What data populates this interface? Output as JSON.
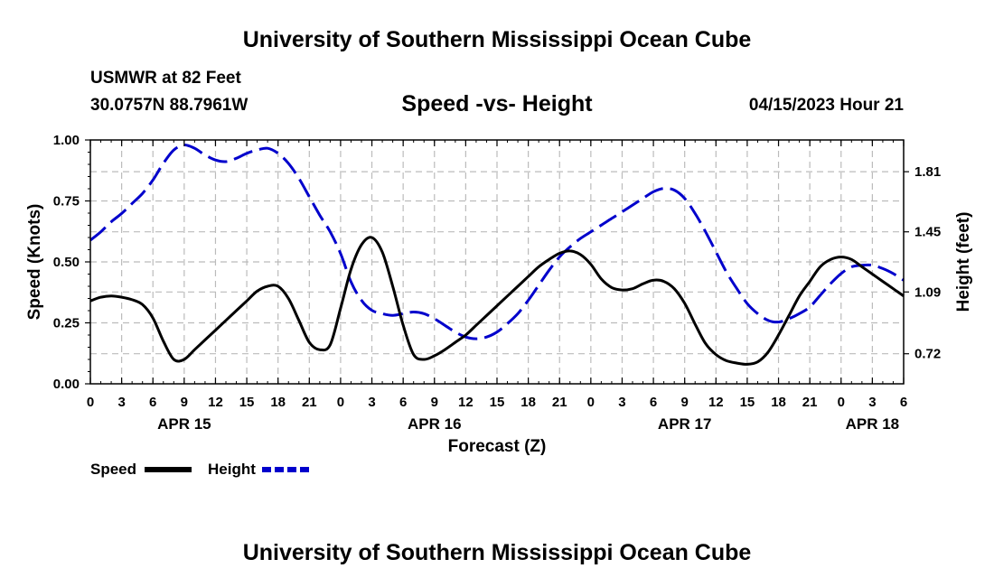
{
  "header": {
    "title": "University of Southern Mississippi Ocean Cube",
    "station_name": "USMWR at 82 Feet",
    "station_coords": "30.0757N  88.7961W",
    "chart_title": "Speed -vs- Height",
    "chart_time": "04/15/2023 Hour 21"
  },
  "footer": {
    "title": "University of Southern Mississippi Ocean Cube"
  },
  "colors": {
    "speed": "#000000",
    "height": "#0000cc",
    "grid": "#bbbbbb"
  },
  "chart_data": {
    "type": "line",
    "title": "Speed -vs- Height",
    "xlabel": "Forecast (Z)",
    "ylabel": "Speed (Knots)",
    "y2label": "Height (feet)",
    "xlim": [
      0,
      78
    ],
    "ylim": [
      0,
      1.0
    ],
    "y2lim": [
      0.54,
      2.0
    ],
    "grid": true,
    "legend_position": "bottom-left",
    "x_ticks": [
      0,
      3,
      6,
      9,
      12,
      15,
      18,
      21,
      24,
      27,
      30,
      33,
      36,
      39,
      42,
      45,
      48,
      51,
      54,
      57,
      60,
      63,
      66,
      69,
      72,
      75,
      78
    ],
    "x_tick_labels": [
      "0",
      "3",
      "6",
      "9",
      "12",
      "15",
      "18",
      "21",
      "0",
      "3",
      "6",
      "9",
      "12",
      "15",
      "18",
      "21",
      "0",
      "3",
      "6",
      "9",
      "12",
      "15",
      "18",
      "21",
      "0",
      "3",
      "6"
    ],
    "date_labels": [
      {
        "x": 9,
        "label": "APR 15"
      },
      {
        "x": 33,
        "label": "APR 16"
      },
      {
        "x": 57,
        "label": "APR 17"
      },
      {
        "x": 75,
        "label": "APR 18"
      }
    ],
    "y_ticks": [
      0,
      0.25,
      0.5,
      0.75,
      1.0
    ],
    "y_tick_labels": [
      "0.00",
      "0.25",
      "0.50",
      "0.75",
      "1.00"
    ],
    "y2_ticks": [
      0.72,
      1.09,
      1.45,
      1.81
    ],
    "y2_tick_labels": [
      "0.72",
      "1.09",
      "1.45",
      "1.81"
    ],
    "series": [
      {
        "name": "Speed",
        "axis": "left",
        "style": "solid",
        "x": [
          0,
          1,
          2,
          3,
          4,
          5,
          6,
          7,
          8,
          9,
          10,
          11,
          12,
          13,
          14,
          15,
          16,
          17,
          18,
          19,
          20,
          21,
          22,
          23,
          24,
          25,
          26,
          27,
          28,
          29,
          30,
          31,
          32,
          33,
          34,
          35,
          36,
          37,
          38,
          39,
          40,
          41,
          42,
          43,
          44,
          45,
          46,
          47,
          48,
          49,
          50,
          51,
          52,
          53,
          54,
          55,
          56,
          57,
          58,
          59,
          60,
          61,
          62,
          63,
          64,
          65,
          66,
          67,
          68,
          69,
          70,
          71,
          72,
          73,
          74,
          75,
          76,
          77,
          78
        ],
        "values": [
          0.34,
          0.355,
          0.36,
          0.355,
          0.345,
          0.325,
          0.27,
          0.175,
          0.1,
          0.1,
          0.14,
          0.18,
          0.22,
          0.26,
          0.3,
          0.34,
          0.38,
          0.4,
          0.4,
          0.35,
          0.26,
          0.17,
          0.14,
          0.16,
          0.31,
          0.47,
          0.57,
          0.6,
          0.54,
          0.4,
          0.24,
          0.12,
          0.1,
          0.115,
          0.14,
          0.17,
          0.2,
          0.24,
          0.28,
          0.32,
          0.36,
          0.4,
          0.44,
          0.48,
          0.51,
          0.535,
          0.545,
          0.53,
          0.49,
          0.43,
          0.395,
          0.385,
          0.39,
          0.41,
          0.425,
          0.42,
          0.39,
          0.33,
          0.245,
          0.165,
          0.12,
          0.095,
          0.085,
          0.08,
          0.09,
          0.13,
          0.2,
          0.28,
          0.36,
          0.42,
          0.48,
          0.51,
          0.52,
          0.51,
          0.48,
          0.45,
          0.42,
          0.39,
          0.36
        ]
      },
      {
        "name": "Height",
        "axis": "right",
        "style": "dashed",
        "x": [
          0,
          1,
          2,
          3,
          4,
          5,
          6,
          7,
          8,
          9,
          10,
          11,
          12,
          13,
          14,
          15,
          16,
          17,
          18,
          19,
          20,
          21,
          22,
          23,
          24,
          25,
          26,
          27,
          28,
          29,
          30,
          31,
          32,
          33,
          34,
          35,
          36,
          37,
          38,
          39,
          40,
          41,
          42,
          43,
          44,
          45,
          46,
          47,
          48,
          49,
          50,
          51,
          52,
          53,
          54,
          55,
          56,
          57,
          58,
          59,
          60,
          61,
          62,
          63,
          64,
          65,
          66,
          67,
          68,
          69,
          70,
          71,
          72,
          73,
          74,
          75,
          76,
          77,
          78
        ],
        "values": [
          1.4,
          1.45,
          1.51,
          1.56,
          1.62,
          1.68,
          1.76,
          1.86,
          1.94,
          1.97,
          1.95,
          1.91,
          1.88,
          1.87,
          1.89,
          1.92,
          1.94,
          1.95,
          1.92,
          1.86,
          1.77,
          1.66,
          1.55,
          1.45,
          1.32,
          1.15,
          1.04,
          0.98,
          0.96,
          0.95,
          0.96,
          0.97,
          0.96,
          0.93,
          0.89,
          0.85,
          0.82,
          0.81,
          0.82,
          0.85,
          0.9,
          0.96,
          1.04,
          1.13,
          1.22,
          1.3,
          1.36,
          1.41,
          1.45,
          1.49,
          1.53,
          1.57,
          1.61,
          1.65,
          1.69,
          1.71,
          1.7,
          1.65,
          1.56,
          1.45,
          1.33,
          1.21,
          1.11,
          1.02,
          0.96,
          0.92,
          0.91,
          0.93,
          0.96,
          1.0,
          1.07,
          1.14,
          1.2,
          1.24,
          1.25,
          1.25,
          1.23,
          1.2,
          1.16
        ]
      }
    ]
  }
}
